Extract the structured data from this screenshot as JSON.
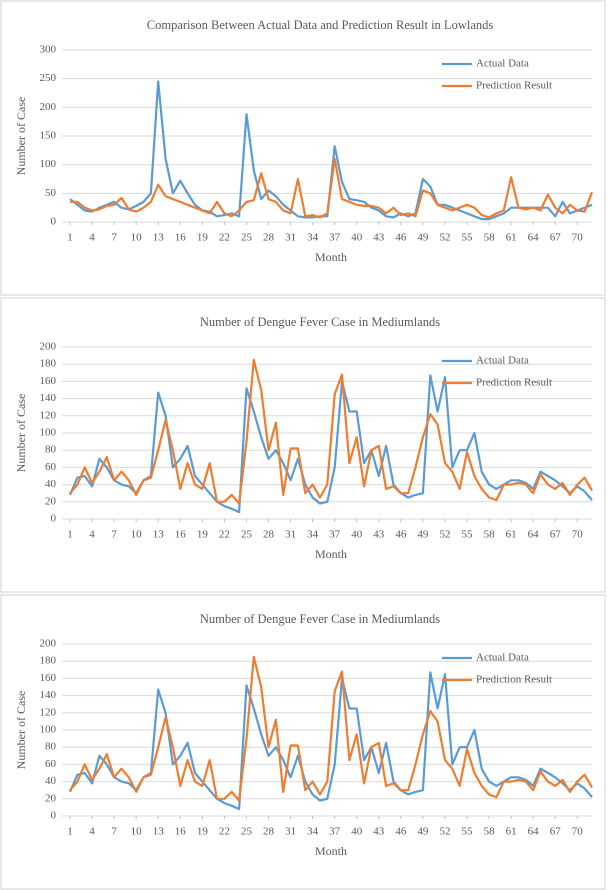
{
  "chart_data": [
    {
      "type": "line",
      "title": "Comparison Between Actual Data and Prediction Result in Lowlands",
      "x_label": "Month",
      "y_label": "Number of Case",
      "x": [
        1,
        2,
        3,
        4,
        5,
        6,
        7,
        8,
        9,
        10,
        11,
        12,
        13,
        14,
        15,
        16,
        17,
        18,
        19,
        20,
        21,
        22,
        23,
        24,
        25,
        26,
        27,
        28,
        29,
        30,
        31,
        32,
        33,
        34,
        35,
        36,
        37,
        38,
        39,
        40,
        41,
        42,
        43,
        44,
        45,
        46,
        47,
        48,
        49,
        50,
        51,
        52,
        53,
        54,
        55,
        56,
        57,
        58,
        59,
        60,
        61,
        62,
        63,
        64,
        65,
        66,
        67,
        68,
        69,
        70,
        71,
        72
      ],
      "xlim": [
        1,
        72
      ],
      "xticks": [
        1,
        4,
        7,
        10,
        13,
        16,
        19,
        22,
        25,
        28,
        31,
        34,
        37,
        40,
        43,
        46,
        49,
        52,
        55,
        58,
        61,
        64,
        67,
        70
      ],
      "ylim": [
        0,
        300
      ],
      "yticks": [
        0,
        50,
        100,
        150,
        200,
        250,
        300
      ],
      "grid": true,
      "legend": "upper right",
      "series": [
        {
          "name": "Actual Data",
          "color": "#5b9bd5",
          "values": [
            40,
            30,
            20,
            18,
            25,
            30,
            35,
            25,
            22,
            28,
            35,
            50,
            245,
            110,
            50,
            72,
            50,
            30,
            20,
            18,
            10,
            12,
            15,
            10,
            188,
            90,
            40,
            55,
            45,
            30,
            20,
            10,
            8,
            8,
            10,
            10,
            132,
            70,
            40,
            38,
            35,
            25,
            20,
            10,
            8,
            15,
            10,
            15,
            75,
            62,
            30,
            30,
            25,
            20,
            15,
            10,
            5,
            5,
            10,
            15,
            25,
            25,
            25,
            25,
            25,
            25,
            10,
            35,
            15,
            20,
            25,
            30
          ]
        },
        {
          "name": "Prediction Result",
          "color": "#ed7d31",
          "values": [
            35,
            35,
            25,
            20,
            22,
            28,
            30,
            42,
            22,
            18,
            25,
            35,
            65,
            45,
            40,
            35,
            30,
            25,
            20,
            15,
            35,
            15,
            10,
            20,
            35,
            38,
            85,
            40,
            35,
            20,
            15,
            75,
            10,
            12,
            8,
            15,
            110,
            40,
            35,
            30,
            28,
            28,
            25,
            15,
            25,
            12,
            15,
            10,
            55,
            50,
            30,
            25,
            20,
            25,
            30,
            25,
            12,
            8,
            15,
            20,
            78,
            25,
            22,
            25,
            20,
            48,
            25,
            15,
            30,
            20,
            18,
            52
          ]
        }
      ]
    },
    {
      "type": "line",
      "title": "Number of Dengue Fever Case in Mediumlands",
      "x_label": "Month",
      "y_label": "Number of Case",
      "x": [
        1,
        2,
        3,
        4,
        5,
        6,
        7,
        8,
        9,
        10,
        11,
        12,
        13,
        14,
        15,
        16,
        17,
        18,
        19,
        20,
        21,
        22,
        23,
        24,
        25,
        26,
        27,
        28,
        29,
        30,
        31,
        32,
        33,
        34,
        35,
        36,
        37,
        38,
        39,
        40,
        41,
        42,
        43,
        44,
        45,
        46,
        47,
        48,
        49,
        50,
        51,
        52,
        53,
        54,
        55,
        56,
        57,
        58,
        59,
        60,
        61,
        62,
        63,
        64,
        65,
        66,
        67,
        68,
        69,
        70,
        71,
        72
      ],
      "xlim": [
        1,
        72
      ],
      "xticks": [
        1,
        4,
        7,
        10,
        13,
        16,
        19,
        22,
        25,
        28,
        31,
        34,
        37,
        40,
        43,
        46,
        49,
        52,
        55,
        58,
        61,
        64,
        67,
        70
      ],
      "ylim": [
        0,
        200
      ],
      "yticks": [
        0,
        20,
        40,
        60,
        80,
        100,
        120,
        140,
        160,
        180,
        200
      ],
      "grid": true,
      "legend": "upper right",
      "series": [
        {
          "name": "Actual Data",
          "color": "#5b9bd5",
          "values": [
            28,
            48,
            50,
            38,
            70,
            60,
            45,
            40,
            38,
            30,
            45,
            50,
            147,
            120,
            60,
            70,
            85,
            50,
            40,
            30,
            20,
            15,
            12,
            8,
            152,
            125,
            95,
            70,
            80,
            65,
            45,
            70,
            40,
            25,
            18,
            20,
            60,
            160,
            125,
            125,
            65,
            80,
            50,
            85,
            40,
            30,
            25,
            28,
            30,
            167,
            125,
            165,
            60,
            80,
            80,
            100,
            55,
            40,
            35,
            40,
            45,
            45,
            42,
            35,
            55,
            50,
            45,
            38,
            30,
            38,
            32,
            22
          ]
        },
        {
          "name": "Prediction Result",
          "color": "#ed7d31",
          "values": [
            30,
            40,
            60,
            42,
            55,
            72,
            45,
            55,
            45,
            28,
            45,
            48,
            80,
            115,
            80,
            35,
            65,
            40,
            35,
            65,
            20,
            20,
            28,
            18,
            90,
            185,
            150,
            80,
            112,
            28,
            82,
            82,
            30,
            40,
            25,
            40,
            145,
            168,
            65,
            95,
            38,
            80,
            85,
            35,
            38,
            30,
            30,
            60,
            95,
            122,
            110,
            65,
            55,
            35,
            78,
            50,
            35,
            25,
            22,
            40,
            40,
            42,
            40,
            30,
            52,
            40,
            35,
            42,
            28,
            40,
            48,
            33
          ]
        }
      ]
    },
    {
      "type": "line",
      "title": "Number of Dengue Fever Case in Mediumlands",
      "x_label": "Month",
      "y_label": "Number of Case",
      "x": [
        1,
        2,
        3,
        4,
        5,
        6,
        7,
        8,
        9,
        10,
        11,
        12,
        13,
        14,
        15,
        16,
        17,
        18,
        19,
        20,
        21,
        22,
        23,
        24,
        25,
        26,
        27,
        28,
        29,
        30,
        31,
        32,
        33,
        34,
        35,
        36,
        37,
        38,
        39,
        40,
        41,
        42,
        43,
        44,
        45,
        46,
        47,
        48,
        49,
        50,
        51,
        52,
        53,
        54,
        55,
        56,
        57,
        58,
        59,
        60,
        61,
        62,
        63,
        64,
        65,
        66,
        67,
        68,
        69,
        70,
        71,
        72
      ],
      "xlim": [
        1,
        72
      ],
      "xticks": [
        1,
        4,
        7,
        10,
        13,
        16,
        19,
        22,
        25,
        28,
        31,
        34,
        37,
        40,
        43,
        46,
        49,
        52,
        55,
        58,
        61,
        64,
        67,
        70
      ],
      "ylim": [
        0,
        200
      ],
      "yticks": [
        0,
        20,
        40,
        60,
        80,
        100,
        120,
        140,
        160,
        180,
        200
      ],
      "grid": true,
      "legend": "upper right",
      "series": [
        {
          "name": "Actual Data",
          "color": "#5b9bd5",
          "values": [
            28,
            48,
            50,
            38,
            70,
            60,
            45,
            40,
            38,
            30,
            45,
            50,
            147,
            120,
            60,
            70,
            85,
            50,
            40,
            30,
            20,
            15,
            12,
            8,
            152,
            125,
            95,
            70,
            80,
            65,
            45,
            70,
            40,
            25,
            18,
            20,
            60,
            160,
            125,
            125,
            65,
            80,
            50,
            85,
            40,
            30,
            25,
            28,
            30,
            167,
            125,
            165,
            60,
            80,
            80,
            100,
            55,
            40,
            35,
            40,
            45,
            45,
            42,
            35,
            55,
            50,
            45,
            38,
            30,
            38,
            32,
            22
          ]
        },
        {
          "name": "Prediction Result",
          "color": "#ed7d31",
          "values": [
            30,
            40,
            60,
            42,
            55,
            72,
            45,
            55,
            45,
            28,
            45,
            48,
            80,
            115,
            80,
            35,
            65,
            40,
            35,
            65,
            20,
            20,
            28,
            18,
            90,
            185,
            150,
            80,
            112,
            28,
            82,
            82,
            30,
            40,
            25,
            40,
            145,
            168,
            65,
            95,
            38,
            80,
            85,
            35,
            38,
            30,
            30,
            60,
            95,
            122,
            110,
            65,
            55,
            35,
            78,
            50,
            35,
            25,
            22,
            40,
            40,
            42,
            40,
            30,
            52,
            40,
            35,
            42,
            28,
            40,
            48,
            33
          ]
        }
      ]
    }
  ]
}
